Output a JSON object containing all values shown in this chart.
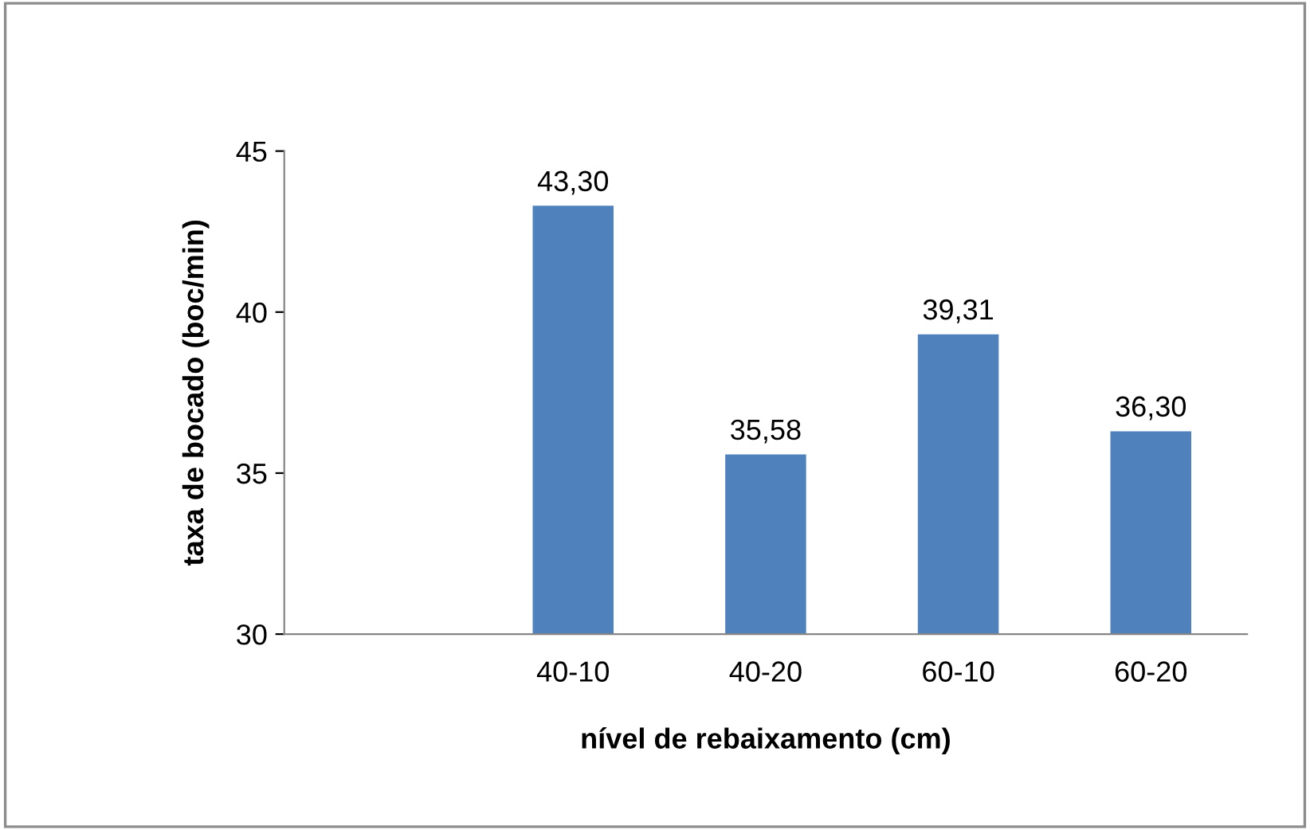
{
  "chart_data": {
    "type": "bar",
    "xlabel": "nível de rebaixamento (cm)",
    "ylabel": "taxa de bocado (boc/min)",
    "categories": [
      null,
      "40-10",
      "40-20",
      "60-10",
      "60-20"
    ],
    "values": [
      null,
      43.3,
      35.58,
      39.31,
      36.3
    ],
    "value_labels": [
      null,
      "43,30",
      "35,58",
      "39,31",
      "36,30"
    ],
    "color": "#4f81bd",
    "ylim": [
      30,
      45
    ],
    "yticks": [
      30,
      35,
      40,
      45
    ],
    "grid": false
  }
}
